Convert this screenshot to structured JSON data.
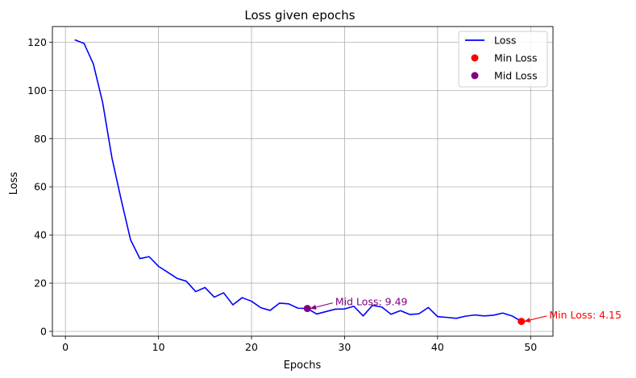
{
  "chart_data": {
    "type": "line",
    "title": "Loss given epochs",
    "xlabel": "Epochs",
    "ylabel": "Loss",
    "xlim": [
      -1.4,
      52.4
    ],
    "ylim": [
      -2,
      126.5
    ],
    "xticks": [
      0,
      10,
      20,
      30,
      40,
      50
    ],
    "yticks": [
      0,
      20,
      40,
      60,
      80,
      100,
      120
    ],
    "grid": true,
    "legend_position": "top-right",
    "series": [
      {
        "name": "Loss",
        "color": "#0000ff",
        "x": [
          1,
          2,
          3,
          4,
          5,
          6,
          7,
          8,
          9,
          10,
          11,
          12,
          13,
          14,
          15,
          16,
          17,
          18,
          19,
          20,
          21,
          22,
          23,
          24,
          25,
          26,
          27,
          28,
          29,
          30,
          31,
          32,
          33,
          34,
          35,
          36,
          37,
          38,
          39,
          40,
          41,
          42,
          43,
          44,
          45,
          46,
          47,
          48,
          49
        ],
        "y": [
          121,
          119.5,
          111,
          95,
          72,
          54.5,
          38,
          30.2,
          31,
          27,
          24.5,
          22,
          20.8,
          16.5,
          18.2,
          14.2,
          16,
          11,
          14,
          12.5,
          9.8,
          8.7,
          11.7,
          11.4,
          9.6,
          9.49,
          7.2,
          8.2,
          9.2,
          9.3,
          10.4,
          6.4,
          10.8,
          10.1,
          7.1,
          8.6,
          7.0,
          7.3,
          9.9,
          6.1,
          5.8,
          5.4,
          6.3,
          6.8,
          6.4,
          6.7,
          7.6,
          6.4,
          4.15
        ]
      }
    ],
    "points": [
      {
        "name": "Min Loss",
        "color": "#ff0000",
        "x": 49,
        "y": 4.15
      },
      {
        "name": "Mid Loss",
        "color": "#800080",
        "x": 26,
        "y": 9.49
      }
    ],
    "annotations": [
      {
        "text": "Mid Loss: 9.49",
        "color": "#800080",
        "x": 26,
        "y": 9.49,
        "text_x": 29,
        "text_y": 10.8
      },
      {
        "text": "Min Loss: 4.15",
        "color": "#ff0000",
        "x": 49,
        "y": 4.15,
        "text_x": 52,
        "text_y": 5.4
      }
    ]
  }
}
